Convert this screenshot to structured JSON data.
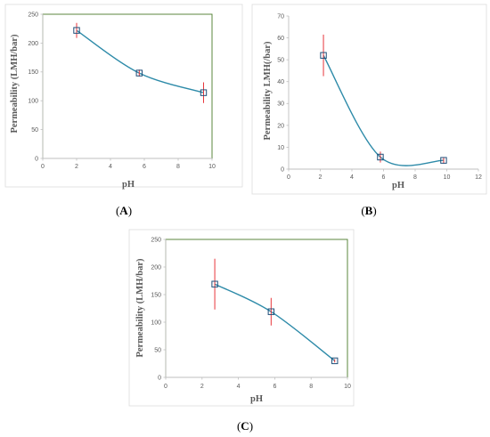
{
  "colors": {
    "curve": "#2e8ba9",
    "marker": "#1f4e79",
    "error_bar": "#e8363b",
    "axis": "#bfbfbf",
    "plot_border": "#4a7a2a",
    "panel_border": "#dcdcdc"
  },
  "chart_data": [
    {
      "type": "scatter",
      "panel": {
        "open": "(",
        "letter": "A",
        "close": ")"
      },
      "xlabel": "pH",
      "ylabel": "Permeability (LMH/bar)",
      "xlim": [
        0,
        10
      ],
      "ylim": [
        0,
        250
      ],
      "xticks": [
        "0",
        "2",
        "4",
        "6",
        "8",
        "10"
      ],
      "yticks": [
        "0",
        "50",
        "100",
        "150",
        "200",
        "250"
      ],
      "grid": false,
      "marker": "open-square",
      "series": [
        {
          "x": [
            2.0,
            5.7,
            9.5
          ],
          "y": [
            222,
            148,
            114
          ],
          "error": [
            13,
            6,
            18
          ]
        }
      ]
    },
    {
      "type": "scatter",
      "panel": {
        "open": "(",
        "letter": "B",
        "close": ")"
      },
      "xlabel": "pH",
      "ylabel": "Permeability LMH(/bar)",
      "xlim": [
        0,
        12
      ],
      "ylim": [
        0,
        70
      ],
      "xticks": [
        "0",
        "2",
        "4",
        "6",
        "8",
        "10",
        "12"
      ],
      "yticks": [
        "0",
        "10",
        "20",
        "30",
        "40",
        "50",
        "60",
        "70"
      ],
      "grid": false,
      "marker": "open-square",
      "series": [
        {
          "x": [
            2.2,
            5.8,
            9.8
          ],
          "y": [
            52,
            5.5,
            4
          ],
          "error": [
            9.5,
            2.5,
            1.5
          ]
        }
      ]
    },
    {
      "type": "scatter",
      "panel": {
        "open": "(",
        "letter": "C",
        "close": ")"
      },
      "xlabel": "pH",
      "ylabel": "Permeability (LMH/bar)",
      "xlim": [
        0,
        10
      ],
      "ylim": [
        0,
        250
      ],
      "xticks": [
        "0",
        "2",
        "4",
        "6",
        "8",
        "10"
      ],
      "yticks": [
        "0",
        "50",
        "100",
        "150",
        "200",
        "250"
      ],
      "grid": false,
      "marker": "open-square",
      "series": [
        {
          "x": [
            2.7,
            5.8,
            9.3
          ],
          "y": [
            169,
            119,
            30
          ],
          "error": [
            46,
            25,
            3
          ]
        }
      ]
    }
  ]
}
